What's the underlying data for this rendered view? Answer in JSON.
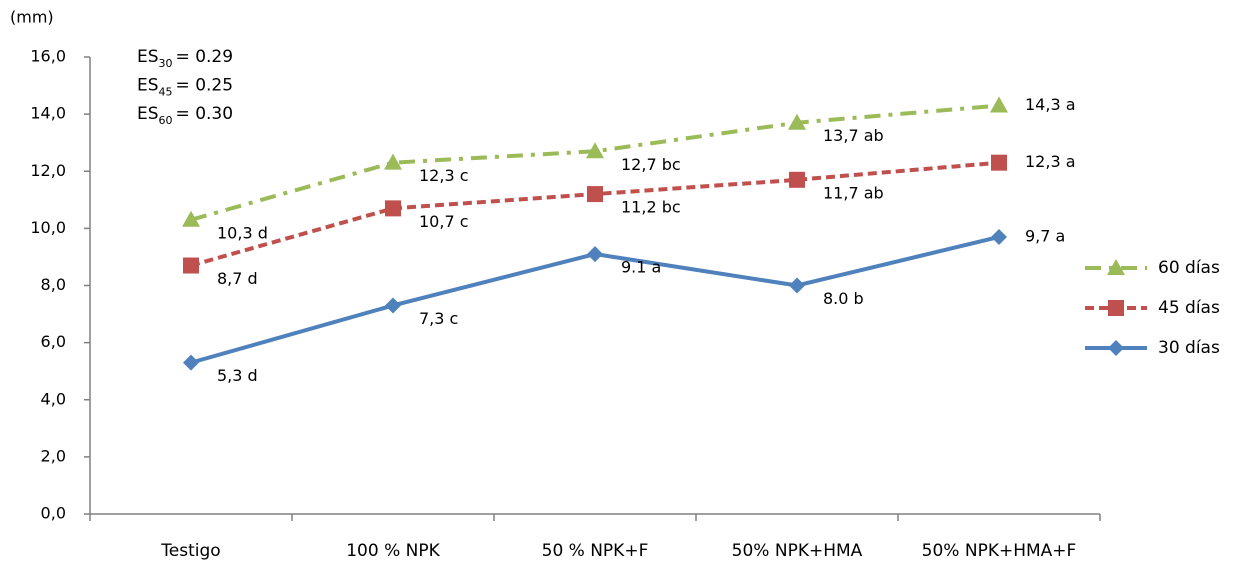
{
  "chart_data": {
    "type": "line",
    "ylabel": "(mm)",
    "categories": [
      "Testigo",
      "100 % NPK",
      "50 % NPK+F",
      "50% NPK+HMA",
      "50% NPK+HMA+F"
    ],
    "ylim": [
      0,
      16
    ],
    "yticks": [
      {
        "value": 0,
        "label": "0,0"
      },
      {
        "value": 2,
        "label": "2,0"
      },
      {
        "value": 4,
        "label": "4,0"
      },
      {
        "value": 6,
        "label": "6,0"
      },
      {
        "value": 8,
        "label": "8,0"
      },
      {
        "value": 10,
        "label": "10,0"
      },
      {
        "value": 12,
        "label": "12,0"
      },
      {
        "value": 14,
        "label": "14,0"
      },
      {
        "value": 16,
        "label": "16,0"
      }
    ],
    "grid": false,
    "legend": "right",
    "annotations": [
      {
        "base": "ES",
        "sub": "30",
        "text": "= 0.29"
      },
      {
        "base": "ES",
        "sub": "45",
        "text": "= 0.25"
      },
      {
        "base": "ES",
        "sub": "60",
        "text": "= 0.30"
      }
    ],
    "series": [
      {
        "name": "60 días",
        "color": "#9bbb59",
        "dash": "dashdot",
        "marker": "triangle",
        "values": [
          10.3,
          12.3,
          12.7,
          13.7,
          14.3
        ],
        "value_labels": [
          "10,3 d",
          "12,3 c",
          "12,7 bc",
          "13,7 ab",
          "14,3 a"
        ]
      },
      {
        "name": "45 días",
        "color": "#c0504d",
        "dash": "dash",
        "marker": "square",
        "values": [
          8.7,
          10.7,
          11.2,
          11.7,
          12.3
        ],
        "value_labels": [
          "8,7 d",
          "10,7 c",
          "11,2 bc",
          "11,7 ab",
          "12,3 a"
        ]
      },
      {
        "name": "30 días",
        "color": "#4f81bd",
        "dash": "solid",
        "marker": "diamond",
        "values": [
          5.3,
          7.3,
          9.1,
          8.0,
          9.7
        ],
        "value_labels": [
          "5,3 d",
          "7,3 c",
          "9.1 a",
          "8.0  b",
          "9,7 a"
        ]
      }
    ]
  }
}
